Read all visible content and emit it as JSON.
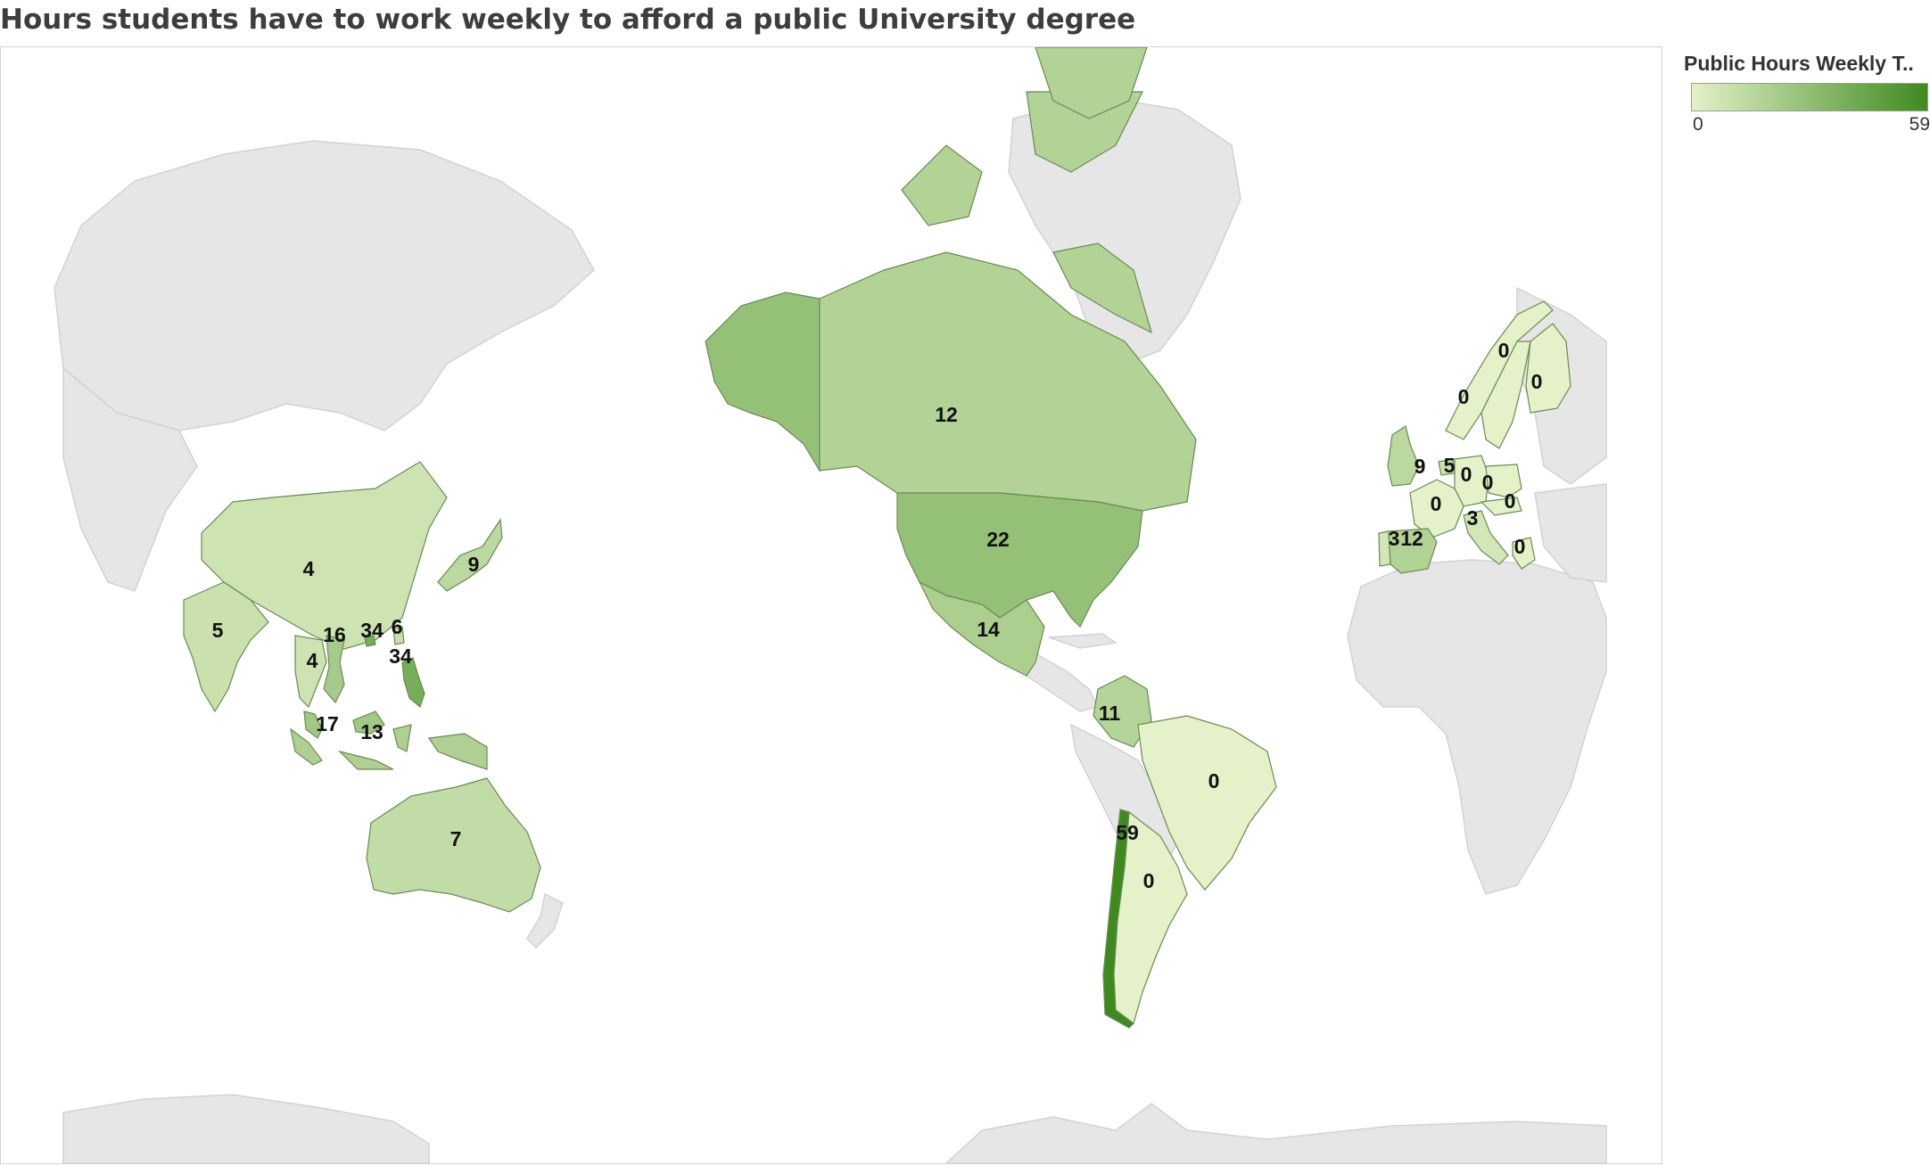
{
  "title": "Hours students have to work weekly to afford a public University degree",
  "legend": {
    "title": "Public Hours Weekly T..",
    "min_label": "0",
    "max_label": "59",
    "color_low": "#e4f1c9",
    "color_high": "#3e8a1f"
  },
  "scale": {
    "min": 0,
    "max": 59
  },
  "regions": [
    {
      "name": "Alaska",
      "value": 22
    },
    {
      "name": "Canada",
      "value": 12
    },
    {
      "name": "United States",
      "value": 22
    },
    {
      "name": "Mexico",
      "value": 14
    },
    {
      "name": "Colombia",
      "value": 11
    },
    {
      "name": "Brazil",
      "value": 0
    },
    {
      "name": "Chile",
      "value": 59
    },
    {
      "name": "Argentina",
      "value": 0
    },
    {
      "name": "China",
      "value": 4
    },
    {
      "name": "India",
      "value": 5
    },
    {
      "name": "Japan",
      "value": 9
    },
    {
      "name": "Thailand",
      "value": 4
    },
    {
      "name": "Vietnam",
      "value": 16
    },
    {
      "name": "Hong Kong",
      "value": 34
    },
    {
      "name": "Taiwan",
      "value": 6
    },
    {
      "name": "Philippines",
      "value": 34
    },
    {
      "name": "Malaysia",
      "value": 17
    },
    {
      "name": "Indonesia",
      "value": 13
    },
    {
      "name": "Australia",
      "value": 7
    },
    {
      "name": "Norway",
      "value": 0
    },
    {
      "name": "Sweden",
      "value": 0
    },
    {
      "name": "Finland",
      "value": 0
    },
    {
      "name": "United Kingdom",
      "value": 9
    },
    {
      "name": "Netherlands",
      "value": 5
    },
    {
      "name": "Germany",
      "value": 0
    },
    {
      "name": "Poland",
      "value": 0
    },
    {
      "name": "France",
      "value": 0
    },
    {
      "name": "Austria",
      "value": 0
    },
    {
      "name": "Italy",
      "value": 3
    },
    {
      "name": "Portugal",
      "value": 3
    },
    {
      "name": "Spain",
      "value": 12
    },
    {
      "name": "Greece",
      "value": 0
    },
    {
      "name": "Greenland"
    }
  ]
}
